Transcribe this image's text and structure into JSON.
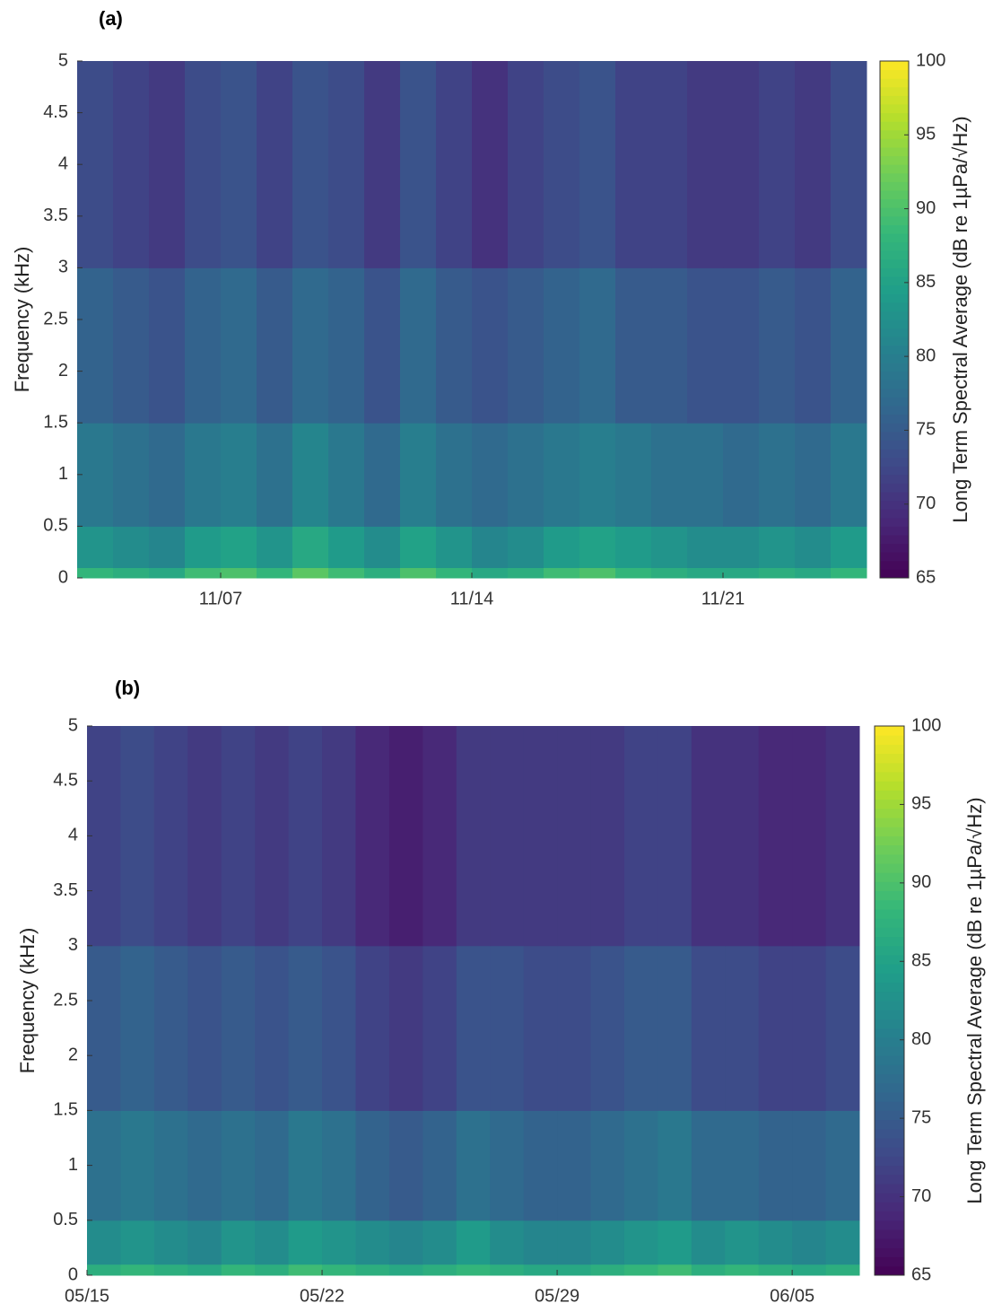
{
  "chart_data": [
    {
      "type": "heatmap",
      "panel_label": "(a)",
      "ylabel": "Frequency (kHz)",
      "colorbar_label": "Long Term Spectral Average (dB re 1µPa/√Hz)",
      "colormap": "viridis",
      "x": [
        "11/03",
        "11/04",
        "11/05",
        "11/06",
        "11/07",
        "11/08",
        "11/09",
        "11/10",
        "11/11",
        "11/12",
        "11/13",
        "11/14",
        "11/15",
        "11/16",
        "11/17",
        "11/18",
        "11/19",
        "11/20",
        "11/21",
        "11/22",
        "11/23",
        "11/24",
        "11/25"
      ],
      "y": [
        0,
        0.1,
        0.5,
        1.5,
        3,
        5
      ],
      "z": [
        [
          88,
          87,
          86,
          89,
          90,
          88,
          91,
          89,
          87,
          90,
          88,
          86,
          87,
          89,
          90,
          88,
          87,
          86,
          86,
          87,
          86,
          88
        ],
        [
          83,
          82,
          81,
          84,
          85,
          83,
          86,
          84,
          82,
          85,
          83,
          81,
          82,
          84,
          85,
          84,
          83,
          82,
          82,
          83,
          82,
          84
        ],
        [
          79,
          78,
          77,
          79,
          80,
          78,
          81,
          79,
          77,
          80,
          78,
          77,
          78,
          79,
          80,
          79,
          78,
          78,
          77,
          78,
          77,
          79
        ],
        [
          76,
          75,
          74,
          76,
          77,
          75,
          77,
          76,
          74,
          77,
          75,
          74,
          75,
          76,
          77,
          75,
          75,
          74,
          74,
          75,
          74,
          76
        ],
        [
          73,
          72,
          71,
          73,
          74,
          72,
          74,
          73,
          71,
          74,
          72,
          70,
          72,
          73,
          74,
          72,
          72,
          71,
          71,
          72,
          71,
          73
        ]
      ],
      "xlim": [
        "11/03",
        "11/25"
      ],
      "xticks": [
        "11/07",
        "11/14",
        "11/21"
      ],
      "ylim": [
        0,
        5
      ],
      "yticks": [
        0,
        0.5,
        1,
        1.5,
        2,
        2.5,
        3,
        3.5,
        4,
        4.5,
        5
      ],
      "clim": [
        65,
        100
      ],
      "cticks": [
        65,
        70,
        75,
        80,
        85,
        90,
        95,
        100
      ]
    },
    {
      "type": "heatmap",
      "panel_label": "(b)",
      "ylabel": "Frequency (kHz)",
      "colorbar_label": "Long Term Spectral Average (dB re 1µPa/√Hz)",
      "colormap": "viridis",
      "x": [
        "05/15",
        "05/16",
        "05/17",
        "05/18",
        "05/19",
        "05/20",
        "05/21",
        "05/22",
        "05/23",
        "05/24",
        "05/25",
        "05/26",
        "05/27",
        "05/28",
        "05/29",
        "05/30",
        "05/31",
        "06/01",
        "06/02",
        "06/03",
        "06/04",
        "06/05",
        "06/06",
        "06/07"
      ],
      "y": [
        0,
        0.1,
        0.5,
        1.5,
        3,
        5
      ],
      "z": [
        [
          87,
          88,
          87,
          86,
          88,
          87,
          89,
          88,
          87,
          86,
          87,
          88,
          87,
          86,
          86,
          87,
          88,
          89,
          87,
          88,
          87,
          86,
          87
        ],
        [
          82,
          83,
          82,
          81,
          83,
          82,
          84,
          83,
          82,
          81,
          82,
          84,
          82,
          81,
          81,
          82,
          83,
          84,
          82,
          83,
          82,
          81,
          82
        ],
        [
          78,
          79,
          78,
          77,
          78,
          77,
          79,
          78,
          76,
          75,
          76,
          78,
          77,
          76,
          76,
          77,
          78,
          79,
          77,
          77,
          76,
          76,
          77
        ],
        [
          75,
          76,
          75,
          74,
          75,
          74,
          75,
          74,
          72,
          71,
          72,
          74,
          74,
          73,
          73,
          74,
          75,
          75,
          73,
          73,
          72,
          72,
          73
        ],
        [
          72,
          73,
          72,
          71,
          72,
          71,
          72,
          71,
          69,
          68,
          69,
          71,
          71,
          71,
          71,
          71,
          72,
          72,
          70,
          70,
          69,
          69,
          70
        ]
      ],
      "xlim": [
        "05/15",
        "06/07"
      ],
      "xticks": [
        "05/15",
        "05/22",
        "05/29",
        "06/05"
      ],
      "ylim": [
        0,
        5
      ],
      "yticks": [
        0,
        0.5,
        1,
        1.5,
        2,
        2.5,
        3,
        3.5,
        4,
        4.5,
        5
      ],
      "clim": [
        65,
        100
      ],
      "cticks": [
        65,
        70,
        75,
        80,
        85,
        90,
        95,
        100
      ]
    }
  ]
}
